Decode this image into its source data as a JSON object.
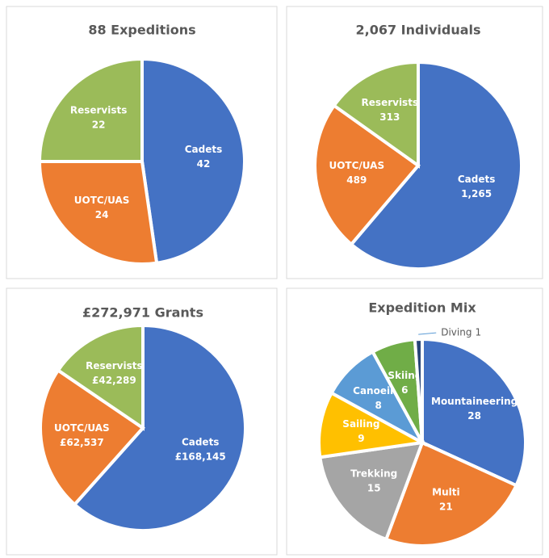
{
  "chart_data": [
    {
      "type": "pie",
      "title": "88 Expeditions",
      "categories": [
        "Cadets",
        "UOTC/UAS",
        "Reservists"
      ],
      "values": [
        42,
        24,
        22
      ],
      "colors": [
        "#4472c4",
        "#ed7d31",
        "#9bbb59"
      ]
    },
    {
      "type": "pie",
      "title": "2,067 Individuals",
      "categories": [
        "Cadets",
        "UOTC/UAS",
        "Reservists"
      ],
      "values": [
        1265,
        489,
        313
      ],
      "value_labels": [
        "1,265",
        "489",
        "313"
      ],
      "colors": [
        "#4472c4",
        "#ed7d31",
        "#9bbb59"
      ]
    },
    {
      "type": "pie",
      "title": "£272,971 Grants",
      "categories": [
        "Cadets",
        "UOTC/UAS",
        "Reservists"
      ],
      "values": [
        168145,
        62537,
        42289
      ],
      "value_labels": [
        "£168,145",
        "£62,537",
        "£42,289"
      ],
      "colors": [
        "#4472c4",
        "#ed7d31",
        "#9bbb59"
      ]
    },
    {
      "type": "pie",
      "title": "Expedition Mix",
      "categories": [
        "Mountaineering",
        "Multi",
        "Trekking",
        "Sailing",
        "Canoeing",
        "Skiing",
        "Diving"
      ],
      "values": [
        28,
        21,
        15,
        9,
        8,
        6,
        1
      ],
      "colors": [
        "#4472c4",
        "#ed7d31",
        "#a5a5a5",
        "#ffc000",
        "#5b9bd5",
        "#70ad47",
        "#264478"
      ]
    }
  ]
}
